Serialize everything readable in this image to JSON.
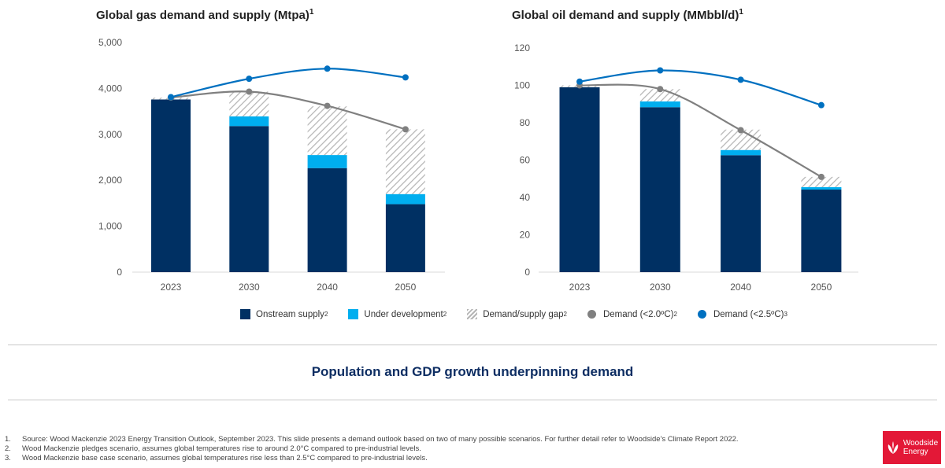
{
  "chart_data": [
    {
      "type": "bar",
      "stacked": true,
      "title": "Global gas demand and supply (Mtpa)",
      "title_sup": "1",
      "categories": [
        "2023",
        "2030",
        "2040",
        "2050"
      ],
      "ylim": [
        0,
        5000
      ],
      "yticks": [
        "0",
        "1,000",
        "2,000",
        "3,000",
        "4,000",
        "5,000"
      ],
      "ytick_values": [
        0,
        1000,
        2000,
        3000,
        4000,
        5000
      ],
      "grid": false,
      "series": [
        {
          "name": "Onstream supply",
          "kind": "bar",
          "values": [
            3760,
            3180,
            2265,
            1480
          ]
        },
        {
          "name": "Under development",
          "kind": "bar",
          "values": [
            0,
            210,
            285,
            220
          ]
        },
        {
          "name": "Demand/supply gap",
          "kind": "bar-hatched",
          "values": [
            40,
            540,
            1060,
            1410
          ]
        },
        {
          "name": "Demand (<2.0ºC)",
          "kind": "line",
          "values": [
            3800,
            3930,
            3620,
            3110
          ]
        },
        {
          "name": "Demand (<2.5ºC)",
          "kind": "line",
          "values": [
            3810,
            4210,
            4430,
            4240
          ]
        }
      ]
    },
    {
      "type": "bar",
      "stacked": true,
      "title": "Global oil demand and supply (MMbbl/d)",
      "title_sup": "1",
      "categories": [
        "2023",
        "2030",
        "2040",
        "2050"
      ],
      "ylim": [
        0,
        120
      ],
      "yticks": [
        "0",
        "20",
        "40",
        "60",
        "80",
        "100",
        "120"
      ],
      "ytick_values": [
        0,
        20,
        40,
        60,
        80,
        100,
        120
      ],
      "grid": false,
      "series": [
        {
          "name": "Onstream supply",
          "kind": "bar",
          "values": [
            99,
            88.3,
            62.6,
            44.2
          ]
        },
        {
          "name": "Under development",
          "kind": "bar",
          "values": [
            0,
            3.1,
            2.8,
            1.3
          ]
        },
        {
          "name": "Demand/supply gap",
          "kind": "bar-hatched",
          "values": [
            1,
            6.6,
            10.9,
            5.5
          ]
        },
        {
          "name": "Demand (<2.0ºC)",
          "kind": "line",
          "values": [
            100,
            98,
            76,
            51
          ]
        },
        {
          "name": "Demand (<2.5ºC)",
          "kind": "line",
          "values": [
            102,
            108,
            103,
            89.4
          ]
        }
      ]
    }
  ],
  "colors": {
    "onstream": "#003063",
    "under_development": "#00aeef",
    "gap_hatch": "#b5b5b5",
    "demand_2_0": "#808080",
    "demand_2_5": "#0070c0",
    "brand": "#e31837",
    "subtitle": "#0e2e63"
  },
  "legend": [
    {
      "label": "Onstream supply",
      "sup": "2"
    },
    {
      "label": "Under development",
      "sup": "2"
    },
    {
      "label": "Demand/supply gap",
      "sup": "2"
    },
    {
      "label": "Demand (<2.0ºC)",
      "sup": "2"
    },
    {
      "label": "Demand (<2.5ºC)",
      "sup": "3"
    }
  ],
  "subtitle": "Population and GDP growth underpinning demand",
  "footnotes": [
    {
      "n": "1.",
      "text": "Source: Wood Mackenzie 2023 Energy Transition Outlook, September 2023. This slide presents a demand outlook based on two of many possible scenarios. For further detail refer to Woodside's Climate Report 2022."
    },
    {
      "n": "2.",
      "text": "Wood Mackenzie pledges scenario, assumes global temperatures rise to around 2.0°C compared to pre-industrial levels."
    },
    {
      "n": "3.",
      "text": "Wood Mackenzie base case scenario, assumes global temperatures rise less than 2.5°C compared to pre-industrial levels."
    }
  ],
  "logo": {
    "line1": "Woodside",
    "line2": "Energy"
  }
}
